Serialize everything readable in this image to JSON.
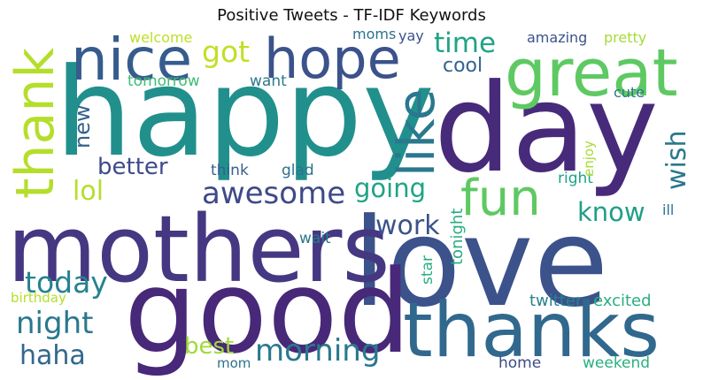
{
  "chart_data": {
    "type": "wordcloud",
    "title": "Positive Tweets - TF-IDF Keywords",
    "words": [
      {
        "text": "happy",
        "weight": 1.0,
        "color": "#21908d"
      },
      {
        "text": "day",
        "weight": 0.98,
        "color": "#472b7a"
      },
      {
        "text": "love",
        "weight": 0.96,
        "color": "#3b528b"
      },
      {
        "text": "good",
        "weight": 0.97,
        "color": "#482878"
      },
      {
        "text": "mothers",
        "weight": 0.8,
        "color": "#453781"
      },
      {
        "text": "thanks",
        "weight": 0.7,
        "color": "#31688e"
      },
      {
        "text": "great",
        "weight": 0.55,
        "color": "#5ec962"
      },
      {
        "text": "nice",
        "weight": 0.48,
        "color": "#365c8d"
      },
      {
        "text": "hope",
        "weight": 0.47,
        "color": "#3b528b"
      },
      {
        "text": "thank",
        "weight": 0.46,
        "color": "#b5de2b"
      },
      {
        "text": "like",
        "weight": 0.44,
        "color": "#2a788e"
      },
      {
        "text": "fun",
        "weight": 0.42,
        "color": "#5ec962"
      },
      {
        "text": "awesome",
        "weight": 0.26,
        "color": "#3e4a89"
      },
      {
        "text": "morning",
        "weight": 0.26,
        "color": "#2a788e"
      },
      {
        "text": "night",
        "weight": 0.26,
        "color": "#2a788e"
      },
      {
        "text": "today",
        "weight": 0.25,
        "color": "#26828e"
      },
      {
        "text": "time",
        "weight": 0.24,
        "color": "#20a386"
      },
      {
        "text": "got",
        "weight": 0.25,
        "color": "#c2df23"
      },
      {
        "text": "haha",
        "weight": 0.22,
        "color": "#31688e"
      },
      {
        "text": "work",
        "weight": 0.22,
        "color": "#3b528b"
      },
      {
        "text": "going",
        "weight": 0.22,
        "color": "#20a386"
      },
      {
        "text": "know",
        "weight": 0.22,
        "color": "#1f9e89"
      },
      {
        "text": "wish",
        "weight": 0.22,
        "color": "#2a788e"
      },
      {
        "text": "lol",
        "weight": 0.22,
        "color": "#b5de2b"
      },
      {
        "text": "better",
        "weight": 0.19,
        "color": "#3e4a89"
      },
      {
        "text": "best",
        "weight": 0.19,
        "color": "#a0da39"
      },
      {
        "text": "new",
        "weight": 0.17,
        "color": "#33638d"
      },
      {
        "text": "cool",
        "weight": 0.16,
        "color": "#33638d"
      },
      {
        "text": "tonight",
        "weight": 0.13,
        "color": "#27ad81"
      },
      {
        "text": "excited",
        "weight": 0.13,
        "color": "#29af7f"
      },
      {
        "text": "twitter",
        "weight": 0.13,
        "color": "#26828e"
      },
      {
        "text": "weekend",
        "weight": 0.12,
        "color": "#29af7f"
      },
      {
        "text": "home",
        "weight": 0.12,
        "color": "#3e4a89"
      },
      {
        "text": "star",
        "weight": 0.12,
        "color": "#27ad81"
      },
      {
        "text": "right",
        "weight": 0.12,
        "color": "#20a386"
      },
      {
        "text": "wait",
        "weight": 0.11,
        "color": "#2a788e"
      },
      {
        "text": "glad",
        "weight": 0.11,
        "color": "#2c728e"
      },
      {
        "text": "think",
        "weight": 0.11,
        "color": "#355f8d"
      },
      {
        "text": "want",
        "weight": 0.11,
        "color": "#2a788e"
      },
      {
        "text": "tomorrow",
        "weight": 0.11,
        "color": "#3fbc73"
      },
      {
        "text": "welcome",
        "weight": 0.11,
        "color": "#bddf26"
      },
      {
        "text": "moms",
        "weight": 0.1,
        "color": "#2c728e"
      },
      {
        "text": "yay",
        "weight": 0.1,
        "color": "#3b528b"
      },
      {
        "text": "amazing",
        "weight": 0.1,
        "color": "#3b528b"
      },
      {
        "text": "pretty",
        "weight": 0.1,
        "color": "#a5db36"
      },
      {
        "text": "cute",
        "weight": 0.1,
        "color": "#2c728e"
      },
      {
        "text": "enjoy",
        "weight": 0.1,
        "color": "#a8db34"
      },
      {
        "text": "ill",
        "weight": 0.1,
        "color": "#2c728e"
      },
      {
        "text": "birthday",
        "weight": 0.1,
        "color": "#b5de2b"
      },
      {
        "text": "mom",
        "weight": 0.1,
        "color": "#2c728e"
      }
    ]
  }
}
